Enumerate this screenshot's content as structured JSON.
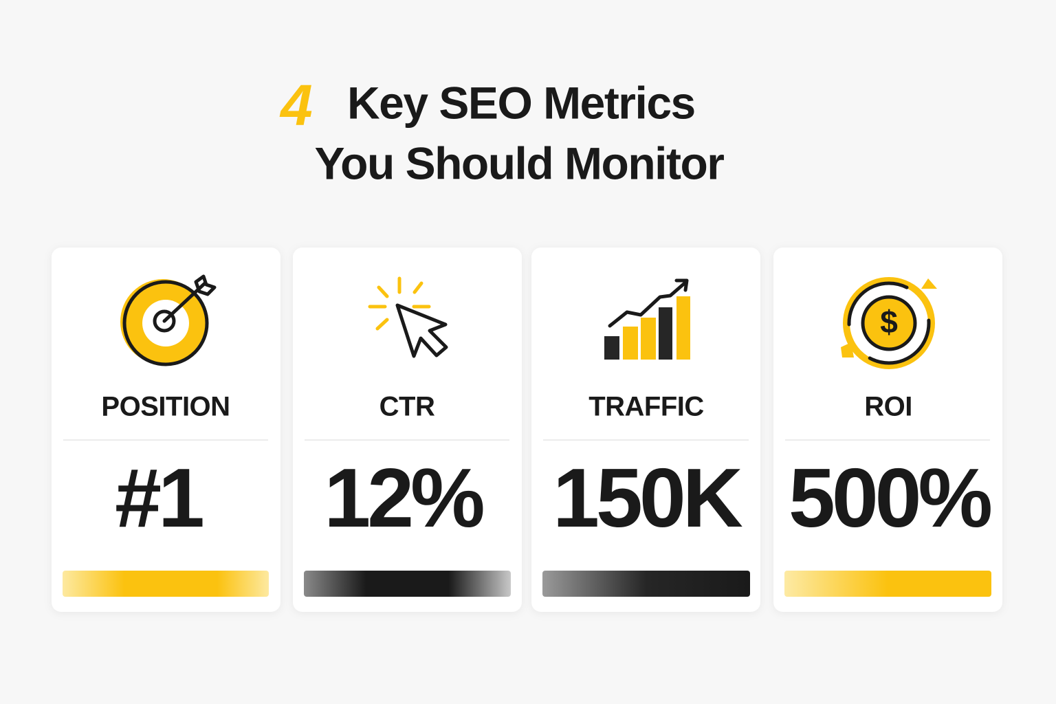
{
  "title": {
    "number": "4",
    "line1": "Key SEO Metrics",
    "line2": "You Should Monitor"
  },
  "cards": [
    {
      "label": "POSITION",
      "value": "#1"
    },
    {
      "label": "CTR",
      "value": "12%"
    },
    {
      "label": "TRAFFIC",
      "value": "150K"
    },
    {
      "label": "ROI",
      "value": "500%"
    }
  ]
}
